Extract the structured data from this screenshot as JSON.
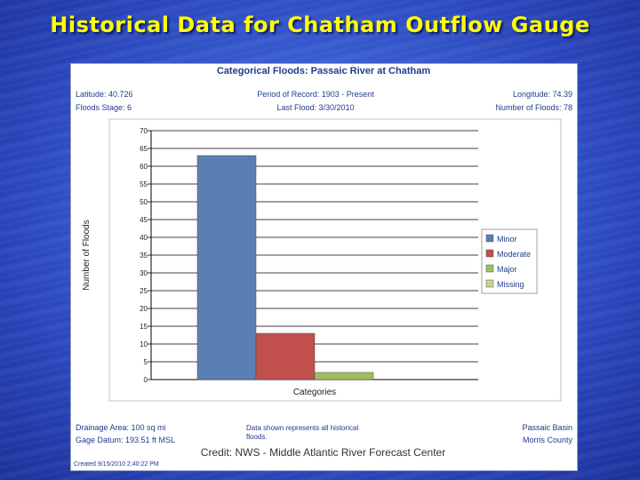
{
  "slide": {
    "title": "Historical Data for Chatham Outflow Gauge",
    "credit": "Credit: NWS - Middle Atlantic River Forecast Center"
  },
  "colors": {
    "title": "#ffff00",
    "header_text": "#1f3c8c",
    "minor": "#5b7fb5",
    "moderate": "#c14f4c",
    "major": "#9fbf5f",
    "missing": "#c6d68a"
  },
  "header": {
    "chart_title": "Categorical Floods: Passaic River at Chatham",
    "latitude": "Latitude: 40.726",
    "flood_stage": "Floods Stage: 6",
    "period_of_record": "Period of Record: 1903 - Present",
    "last_flood": "Last Flood: 3/30/2010",
    "longitude": "Longitude: 74.39",
    "number_of_floods": "Number of Floods: 78"
  },
  "footer": {
    "drainage_area": "Drainage Area: 100 sq mi",
    "gage_datum": "Gage Datum: 193.51 ft MSL",
    "note_line1": "Data shown represents all historical",
    "note_line2": "floods.",
    "basin": "Passaic Basin",
    "county": "Morris County",
    "created": "Created 9/15/2010 2:40:22 PM"
  },
  "chart_data": {
    "type": "bar",
    "title": "Categorical Floods: Passaic River at Chatham",
    "xlabel": "Categories",
    "ylabel": "Number of Floods",
    "ylim": [
      0,
      70
    ],
    "yticks": [
      0,
      5,
      10,
      15,
      20,
      25,
      30,
      35,
      40,
      45,
      50,
      55,
      60,
      65,
      70
    ],
    "categories": [
      "Minor",
      "Moderate",
      "Major",
      "Missing"
    ],
    "values": [
      63,
      13,
      2,
      0
    ],
    "legend": [
      "Minor",
      "Moderate",
      "Major",
      "Missing"
    ],
    "legend_position": "right",
    "grid": true
  }
}
